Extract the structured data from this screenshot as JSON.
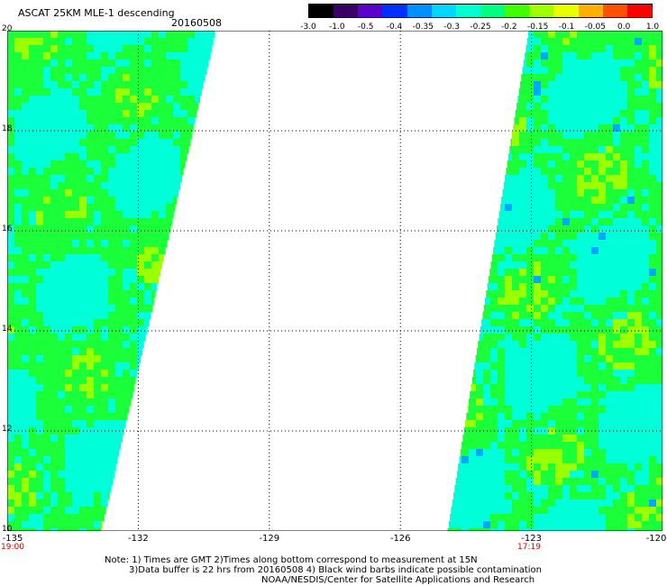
{
  "header": {
    "title": "ASCAT 25KM MLE-1 descending",
    "date": "20160508"
  },
  "colorbar": {
    "labels": [
      "-3.0",
      "-1.0",
      "-0.5",
      "-0.4",
      "-0.35",
      "-0.3",
      "-0.25",
      "-0.2",
      "-0.15",
      "-0.1",
      "-0.05",
      "0.0",
      "1.0"
    ],
    "colors": [
      "#000000",
      "#3a0066",
      "#5a00cc",
      "#0030ff",
      "#0090ff",
      "#00d8ff",
      "#00ffd0",
      "#00ff80",
      "#40ff00",
      "#a0ff00",
      "#e8ff00",
      "#ffb000",
      "#ff5000",
      "#ff0000"
    ]
  },
  "axes": {
    "y_ticks": [
      "20",
      "18",
      "16",
      "14",
      "12",
      "10"
    ],
    "x_ticks": [
      "-135",
      "-132",
      "-129",
      "-126",
      "-123",
      "-120"
    ],
    "swath_times": [
      "19:00",
      "17:19"
    ]
  },
  "notes": {
    "line1": "Note: 1) Times are GMT 2)Times along bottom correspond to measurement at 15N",
    "line2": "3)Data buffer is 22 hrs from 20160508 4) Black wind barbs indicate possible contamination",
    "line3": "NOAA/NESDIS/Center for Satellite Applications and Research"
  },
  "map": {
    "lat_range": [
      10,
      20
    ],
    "lon_range": [
      -135,
      -120
    ],
    "colors": {
      "green": "#1aff3a",
      "cyan": "#00ffd8",
      "yellow_green": "#9aff00",
      "blue": "#00a8ff"
    }
  }
}
